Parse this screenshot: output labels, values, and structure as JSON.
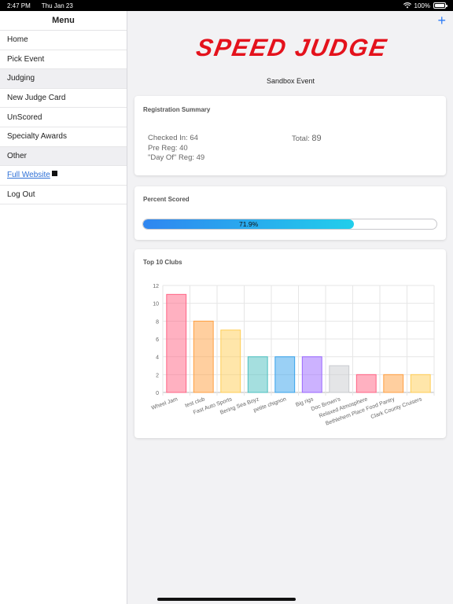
{
  "status_bar": {
    "time": "2:47 PM",
    "date": "Thu Jan 23",
    "battery": "100%"
  },
  "sidebar": {
    "title": "Menu",
    "items": [
      {
        "label": "Home",
        "type": "item"
      },
      {
        "label": "Pick Event",
        "type": "item"
      },
      {
        "label": "Judging",
        "type": "section"
      },
      {
        "label": "New Judge Card",
        "type": "item"
      },
      {
        "label": "UnScored",
        "type": "item"
      },
      {
        "label": "Specialty Awards",
        "type": "item"
      },
      {
        "label": "Other",
        "type": "section"
      },
      {
        "label": "Full Website",
        "type": "link"
      },
      {
        "label": "Log Out",
        "type": "item"
      }
    ]
  },
  "header": {
    "add_icon": "plus-icon",
    "add_label": "+"
  },
  "logo": {
    "text": "SPEED JUDGE",
    "color": "#e4121c"
  },
  "event": {
    "name": "Sandbox Event"
  },
  "registration": {
    "title": "Registration Summary",
    "checked_in": "Checked In: 64",
    "pre_reg": "Pre Reg: 40",
    "day_of": "\"Day Of\" Reg: 49",
    "total_label": "Total: ",
    "total_value": "89"
  },
  "percent_scored": {
    "title": "Percent Scored",
    "value": 0.719,
    "label": "71.9%"
  },
  "top_clubs": {
    "title": "Top 10 Clubs",
    "chart_data": {
      "type": "bar",
      "categories": [
        "Wheel Jam",
        "test club",
        "Fast Auto Sports",
        "Bering Sea Boyz",
        "petite chignon",
        "Big rigs",
        "Doc Brown's",
        "Relaxed Atmosphere",
        "Bethlehem Place Food Pantry",
        "Clark County Cruisers"
      ],
      "values": [
        11,
        8,
        7,
        4,
        4,
        4,
        3,
        2,
        2,
        2
      ],
      "ylim": [
        0,
        12
      ],
      "yticks": [
        0,
        2,
        4,
        6,
        8,
        10,
        12
      ],
      "colors": [
        "#ff6384",
        "#ff9f40",
        "#ffcd56",
        "#4bc0c0",
        "#36a2eb",
        "#9966ff",
        "#c9cbcf",
        "#ff6384",
        "#ff9f40",
        "#ffcd56"
      ],
      "title": "",
      "xlabel": "",
      "ylabel": "",
      "grid": true
    }
  }
}
